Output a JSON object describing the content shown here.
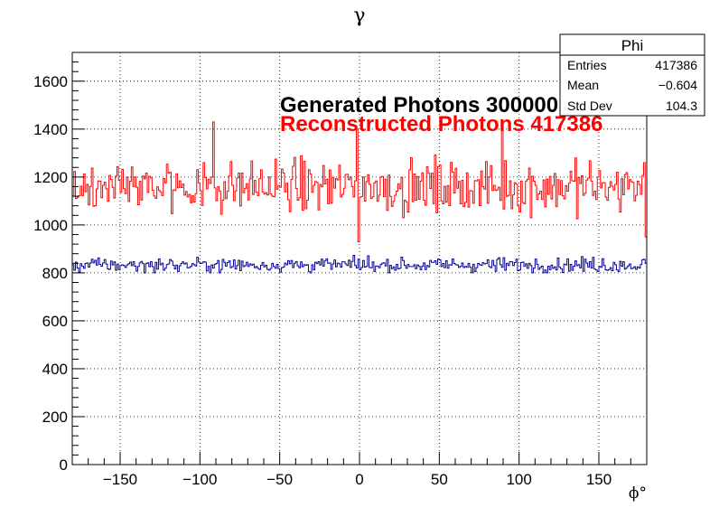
{
  "chart_data": {
    "type": "histogram",
    "title": "γ",
    "xlabel": "ϕ°",
    "ylabel": "",
    "xlim": [
      -180,
      180
    ],
    "ylim": [
      0,
      1720
    ],
    "x_ticks": [
      -150,
      -100,
      -50,
      0,
      50,
      100,
      150
    ],
    "x_tick_labels": [
      "−150",
      "−100",
      "−50",
      "0",
      "50",
      "100",
      "150"
    ],
    "y_ticks": [
      0,
      200,
      400,
      600,
      800,
      1000,
      1200,
      1400,
      1600
    ],
    "y_tick_labels": [
      "0",
      "200",
      "400",
      "600",
      "800",
      "1000",
      "1200",
      "1400",
      "1600"
    ],
    "grid": true,
    "bin_count": 360,
    "bin_width": 1,
    "series": [
      {
        "label": "Reconstructed Photons 417386",
        "color": "#ff0000",
        "mean_level": 1160,
        "notable_bins": [
          {
            "x": -92,
            "value": 1430
          },
          {
            "x": -2,
            "value": 1400
          },
          {
            "x": -1,
            "value": 930
          },
          {
            "x": 89,
            "value": 1410
          },
          {
            "x": 179,
            "value": 950
          }
        ]
      },
      {
        "label": "Generated Photons 300000",
        "color": "#000099",
        "mean_level": 833,
        "range_observed": [
          800,
          920
        ]
      }
    ],
    "stats_box": {
      "title": "Phi",
      "rows": [
        {
          "label": "Entries",
          "value": "417386"
        },
        {
          "label": "Mean",
          "value": "−0.604"
        },
        {
          "label": "Std Dev",
          "value": "104.3"
        }
      ]
    },
    "legend": [
      {
        "text": "Generated Photons 300000",
        "color": "#000000"
      },
      {
        "text": "Reconstructed Photons 417386",
        "color": "#ff0000"
      }
    ]
  }
}
